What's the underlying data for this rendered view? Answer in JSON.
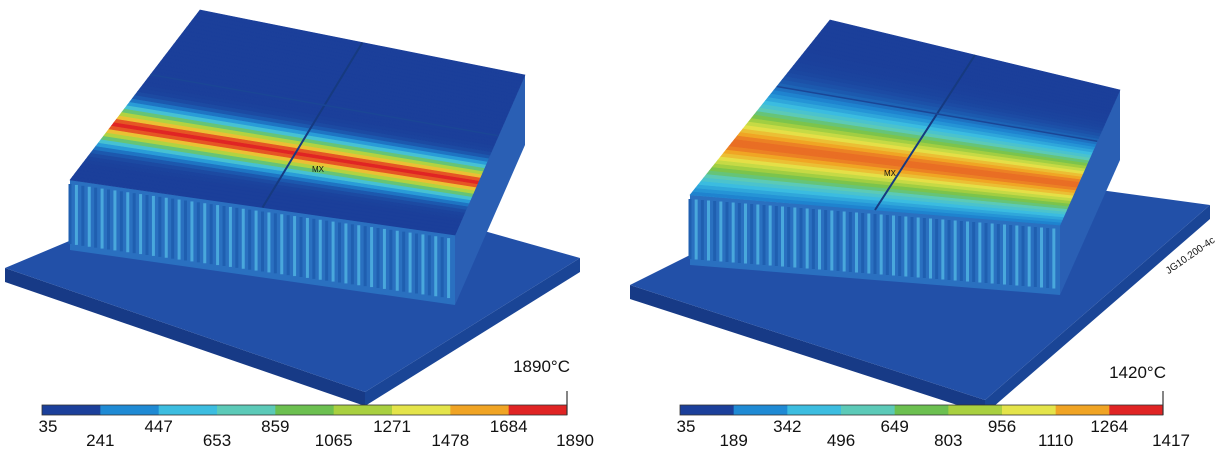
{
  "panels": [
    {
      "max_label": "1890°C",
      "marker": "MX",
      "scale": {
        "ticks": [
          35,
          241,
          447,
          653,
          859,
          1065,
          1271,
          1478,
          1684,
          1890
        ]
      }
    },
    {
      "max_label": "1420°C",
      "marker": "MX",
      "figure_id": "JG10.200-4c",
      "scale": {
        "ticks": [
          35,
          189,
          342,
          496,
          649,
          803,
          956,
          1110,
          1264,
          1417
        ]
      }
    }
  ]
}
